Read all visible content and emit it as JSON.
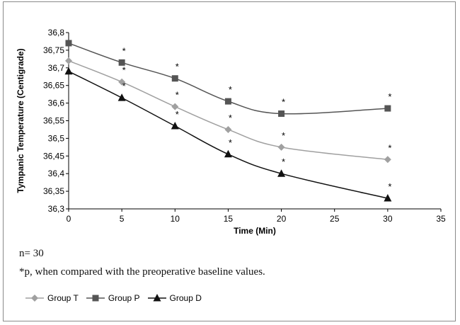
{
  "chart_data": {
    "type": "line",
    "title": "",
    "xlabel": "Time (Min)",
    "ylabel": "Tympanic Temperature (Centigrade)",
    "xlim": [
      0,
      35
    ],
    "ylim": [
      36.3,
      36.8
    ],
    "x_ticks": [
      "0",
      "5",
      "10",
      "15",
      "20",
      "25",
      "30",
      "35"
    ],
    "y_ticks": [
      "36,3",
      "36,35",
      "36,4",
      "36,45",
      "36,5",
      "36,55",
      "36,6",
      "36,65",
      "36,7",
      "36,75",
      "36,8"
    ],
    "grid": false,
    "legend_position": "bottom",
    "series": [
      {
        "name": "Group T",
        "color": "#a0a0a0",
        "marker": "diamond",
        "x": [
          0,
          5,
          10,
          15,
          20,
          30
        ],
        "values": [
          36.72,
          36.66,
          36.59,
          36.525,
          36.475,
          36.44
        ],
        "significant": [
          false,
          true,
          true,
          true,
          true,
          true
        ]
      },
      {
        "name": "Group P",
        "color": "#555555",
        "marker": "square",
        "x": [
          0,
          5,
          10,
          15,
          20,
          30
        ],
        "values": [
          36.77,
          36.715,
          36.67,
          36.605,
          36.57,
          36.585
        ],
        "significant": [
          false,
          true,
          true,
          true,
          true,
          true
        ]
      },
      {
        "name": "Group D",
        "color": "#111111",
        "marker": "triangle",
        "x": [
          0,
          5,
          10,
          15,
          20,
          30
        ],
        "values": [
          36.69,
          36.615,
          36.535,
          36.455,
          36.4,
          36.33
        ],
        "significant": [
          false,
          true,
          true,
          true,
          true,
          true
        ]
      }
    ],
    "annotation_symbol": "*"
  },
  "notes": {
    "n": "n= 30",
    "footnote": "*p, when compared with the preoperative baseline values."
  }
}
